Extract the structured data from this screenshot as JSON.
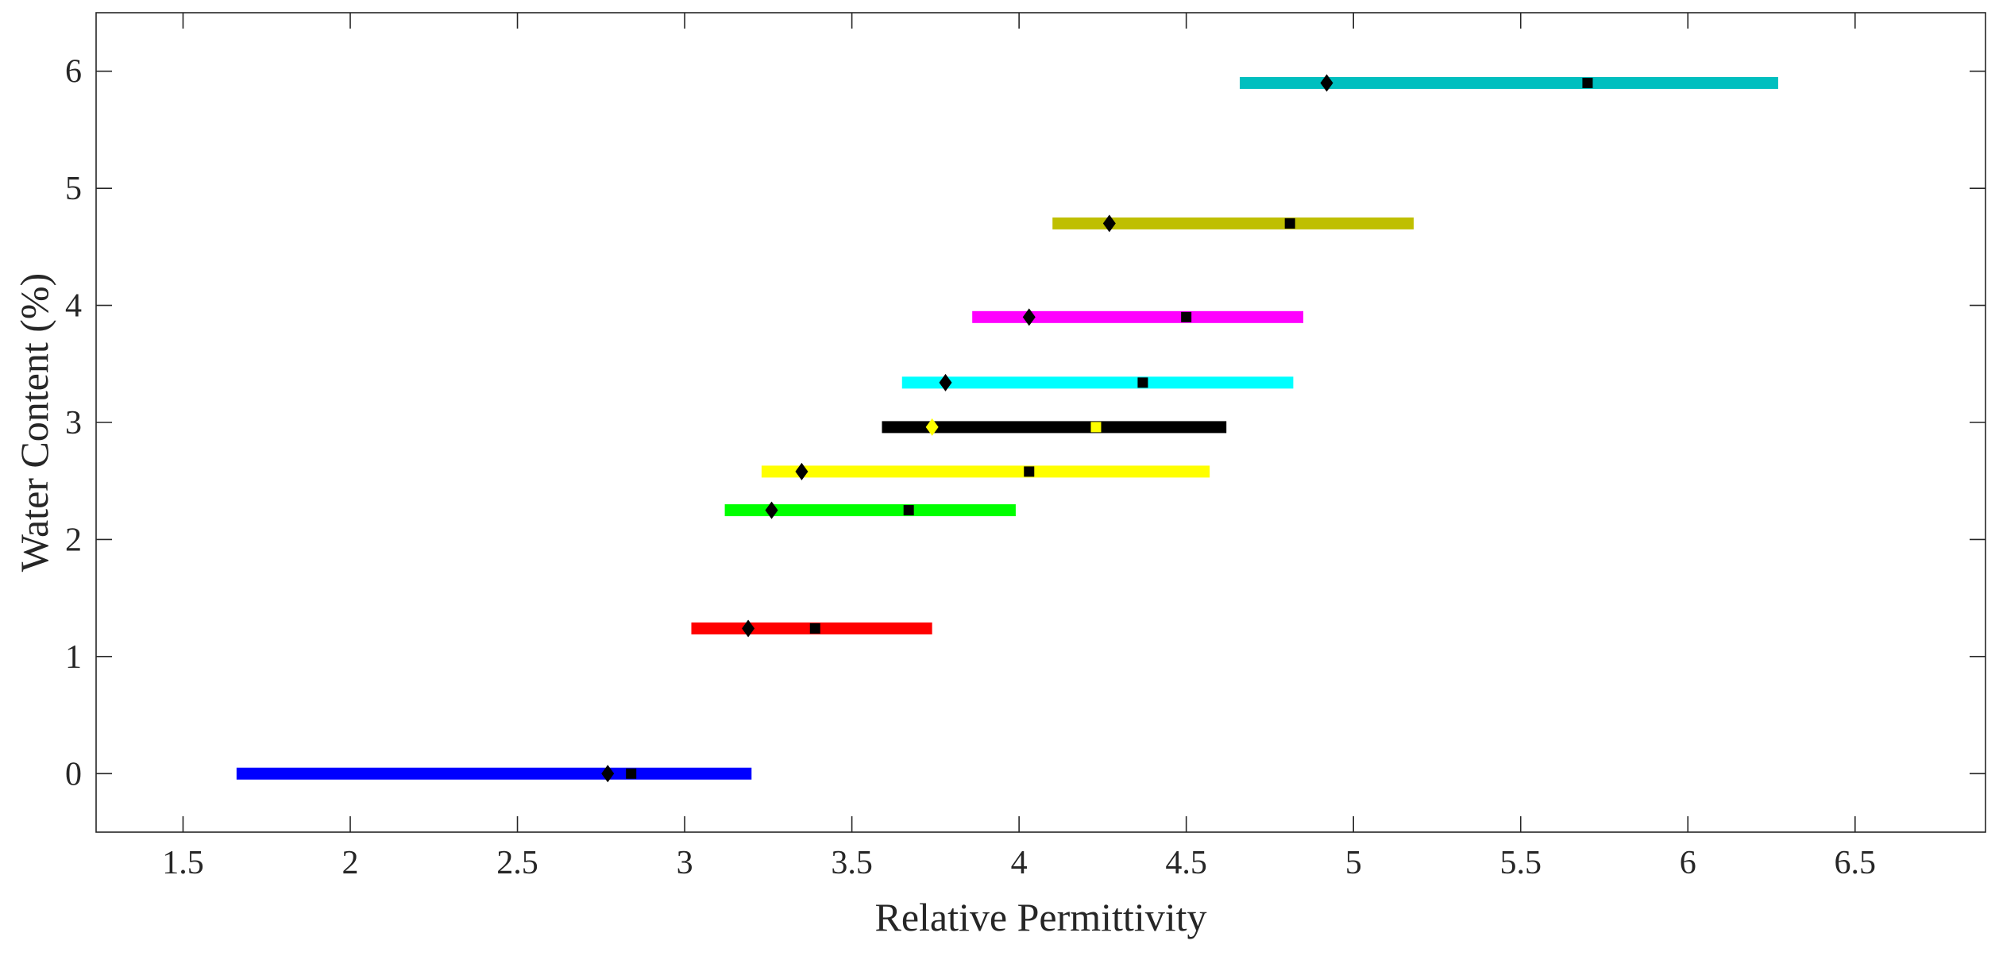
{
  "chart_data": {
    "type": "range",
    "title": "",
    "xlabel": "Relative Permittivity",
    "ylabel": "Water Content (%)",
    "xlim": [
      1.24,
      6.89
    ],
    "ylim": [
      -0.5,
      6.5
    ],
    "xticks": [
      1.5,
      2,
      2.5,
      3,
      3.5,
      4,
      4.5,
      5,
      5.5,
      6,
      6.5
    ],
    "xtick_labels": [
      "1.5",
      "2",
      "2.5",
      "3",
      "3.5",
      "4",
      "4.5",
      "5",
      "5.5",
      "6",
      "6.5"
    ],
    "yticks": [
      0,
      1,
      2,
      3,
      4,
      5,
      6
    ],
    "ytick_labels": [
      "0",
      "1",
      "2",
      "3",
      "4",
      "5",
      "6"
    ],
    "grid": false,
    "legend": "none",
    "series": [
      {
        "y": 0.0,
        "x_min": 1.66,
        "x_max": 3.2,
        "diamond": 2.77,
        "square": 2.84,
        "color": "#0000ff",
        "marker_color": "#000000"
      },
      {
        "y": 1.24,
        "x_min": 3.02,
        "x_max": 3.74,
        "diamond": 3.19,
        "square": 3.39,
        "color": "#ff0000",
        "marker_color": "#000000"
      },
      {
        "y": 2.25,
        "x_min": 3.12,
        "x_max": 3.99,
        "diamond": 3.26,
        "square": 3.67,
        "color": "#00ff00",
        "marker_color": "#000000"
      },
      {
        "y": 2.58,
        "x_min": 3.23,
        "x_max": 4.57,
        "diamond": 3.35,
        "square": 4.03,
        "color": "#ffff00",
        "marker_color": "#000000"
      },
      {
        "y": 2.96,
        "x_min": 3.59,
        "x_max": 4.62,
        "diamond": 3.74,
        "square": 4.23,
        "color": "#000000",
        "marker_color": "#ffff00"
      },
      {
        "y": 3.34,
        "x_min": 3.65,
        "x_max": 4.82,
        "diamond": 3.78,
        "square": 4.37,
        "color": "#00ffff",
        "marker_color": "#000000"
      },
      {
        "y": 3.9,
        "x_min": 3.86,
        "x_max": 4.85,
        "diamond": 4.03,
        "square": 4.5,
        "color": "#ff00ff",
        "marker_color": "#000000"
      },
      {
        "y": 4.7,
        "x_min": 4.1,
        "x_max": 5.18,
        "diamond": 4.27,
        "square": 4.81,
        "color": "#bfbf00",
        "marker_color": "#000000"
      },
      {
        "y": 5.9,
        "x_min": 4.66,
        "x_max": 6.27,
        "diamond": 4.92,
        "square": 5.7,
        "color": "#00bfbf",
        "marker_color": "#000000"
      }
    ]
  }
}
